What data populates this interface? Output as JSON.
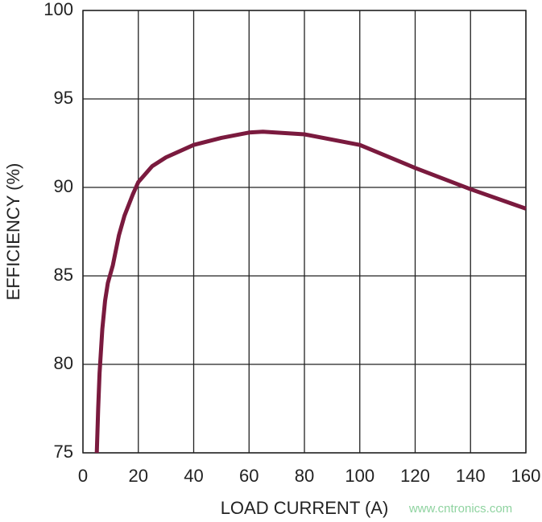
{
  "chart_data": {
    "type": "line",
    "x_label": "LOAD CURRENT (A)",
    "y_label": "EFFICIENCY (%)",
    "watermark": "www.cntronics.com",
    "x": [
      5,
      5.5,
      6,
      7,
      8,
      9,
      10.8,
      13,
      15,
      18,
      20,
      25,
      30,
      40,
      50,
      60,
      65,
      80,
      100,
      120,
      140,
      160
    ],
    "series": [
      {
        "color": "#7a1a3e",
        "values": [
          75,
          77.5,
          79.5,
          82,
          83.6,
          84.6,
          85.6,
          87.3,
          88.4,
          89.6,
          90.3,
          91.2,
          91.7,
          92.4,
          92.8,
          93.1,
          93.15,
          93.0,
          92.4,
          91.1,
          89.9,
          88.8
        ]
      }
    ],
    "xlim": [
      0,
      160
    ],
    "xticks": [
      0,
      20,
      40,
      60,
      80,
      100,
      120,
      140,
      160
    ],
    "ylim": [
      75,
      100
    ],
    "yticks": [
      75,
      80,
      85,
      90,
      95,
      100
    ],
    "grid": true
  }
}
